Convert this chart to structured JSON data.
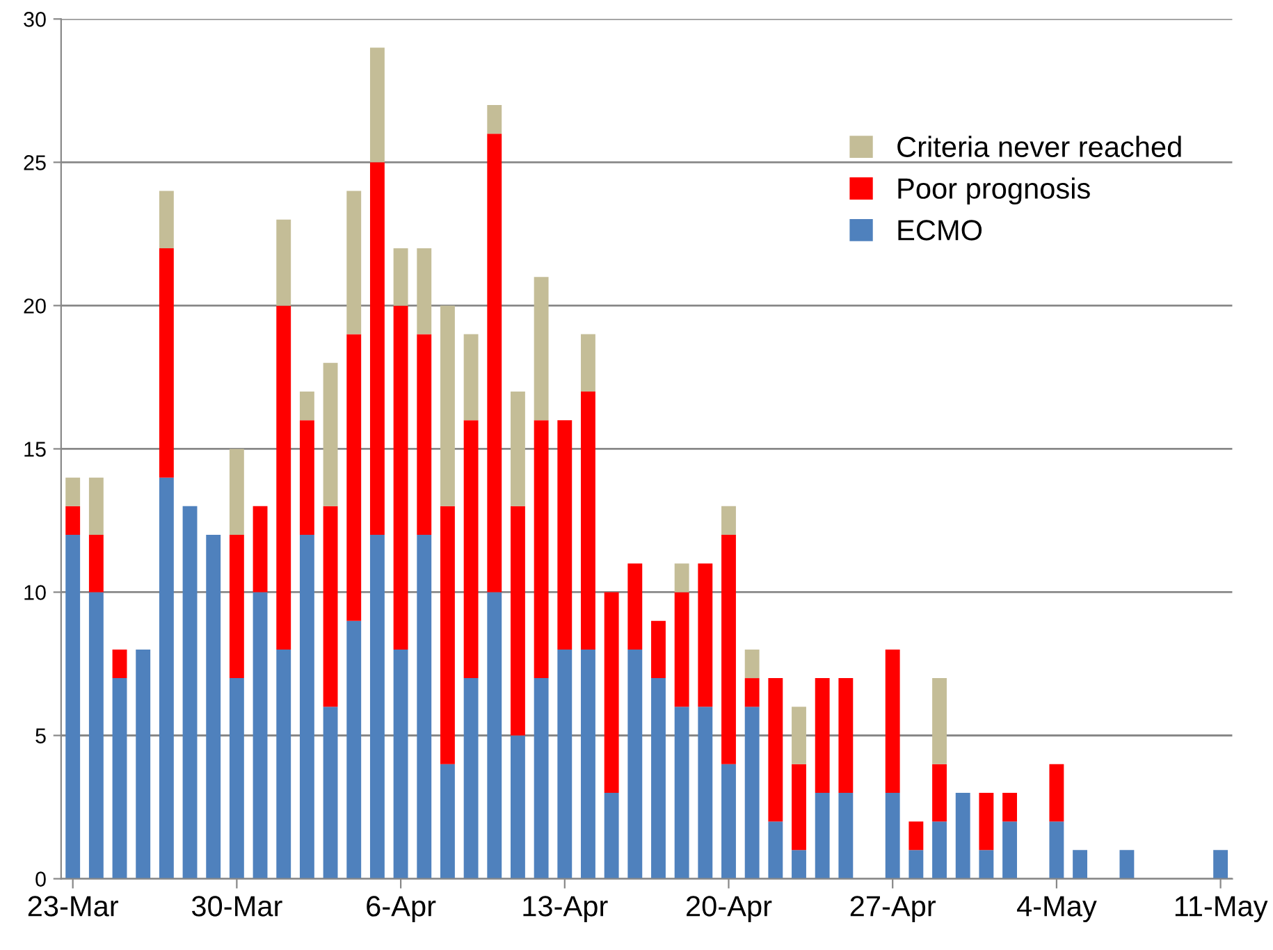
{
  "chart_data": {
    "type": "bar",
    "stacked": true,
    "categories": [
      "23-Mar",
      null,
      null,
      null,
      null,
      null,
      null,
      "30-Mar",
      null,
      null,
      null,
      null,
      null,
      null,
      "6-Apr",
      null,
      null,
      null,
      null,
      null,
      null,
      "13-Apr",
      null,
      null,
      null,
      null,
      null,
      null,
      "20-Apr",
      null,
      null,
      null,
      null,
      null,
      null,
      "27-Apr",
      null,
      null,
      null,
      null,
      null,
      null,
      "4-May",
      null,
      null,
      null,
      null,
      null,
      null,
      "11-May"
    ],
    "series": [
      {
        "name": "ECMO",
        "color": "#4f81bd",
        "values": [
          12,
          10,
          7,
          8,
          14,
          13,
          12,
          7,
          10,
          8,
          12,
          6,
          9,
          12,
          8,
          12,
          4,
          7,
          10,
          5,
          7,
          8,
          8,
          3,
          8,
          7,
          6,
          6,
          4,
          6,
          2,
          1,
          3,
          3,
          0,
          3,
          1,
          2,
          3,
          1,
          2,
          0,
          2,
          1,
          0,
          1,
          0,
          0,
          0,
          1
        ]
      },
      {
        "name": "Poor prognosis",
        "color": "#ff0000",
        "values": [
          1,
          2,
          1,
          0,
          8,
          0,
          0,
          5,
          3,
          12,
          4,
          7,
          10,
          13,
          12,
          7,
          9,
          9,
          16,
          8,
          9,
          8,
          9,
          7,
          3,
          2,
          4,
          5,
          8,
          1,
          5,
          3,
          4,
          4,
          0,
          5,
          1,
          2,
          0,
          2,
          1,
          0,
          2,
          0,
          0,
          0,
          0,
          0,
          0,
          0
        ]
      },
      {
        "name": "Criteria never reached",
        "color": "#c4bd97",
        "values": [
          1,
          2,
          0,
          0,
          2,
          0,
          0,
          3,
          0,
          3,
          1,
          5,
          5,
          4,
          2,
          3,
          7,
          3,
          1,
          4,
          5,
          0,
          2,
          0,
          0,
          0,
          1,
          0,
          1,
          1,
          0,
          2,
          0,
          0,
          0,
          0,
          0,
          3,
          0,
          0,
          0,
          0,
          0,
          0,
          0,
          0,
          0,
          0,
          0,
          0
        ]
      }
    ],
    "ylim": [
      0,
      30
    ],
    "yticks": [
      0,
      5,
      10,
      15,
      20,
      25,
      30
    ],
    "grid": "y",
    "legend": "right"
  }
}
